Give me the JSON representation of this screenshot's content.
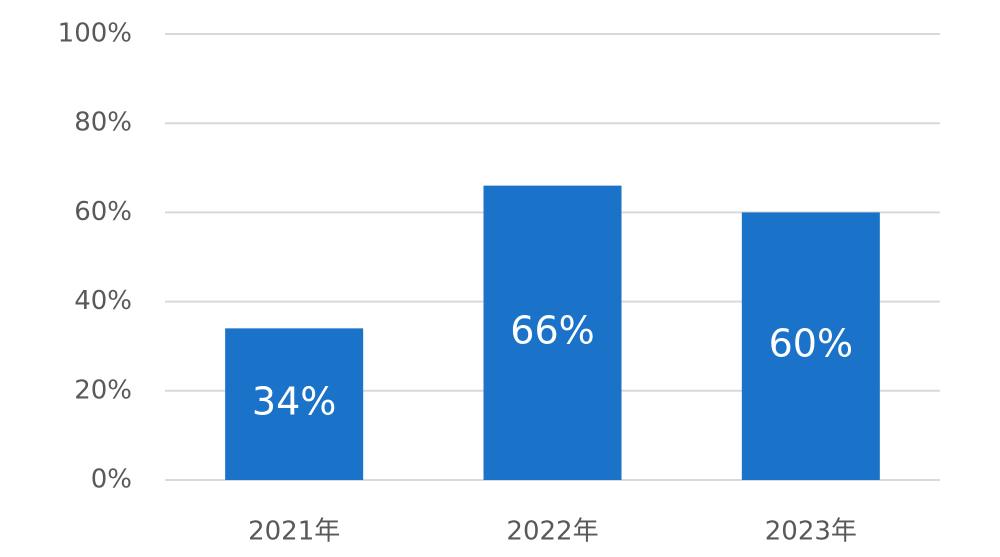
{
  "chart_data": {
    "type": "bar",
    "categories": [
      "2021年",
      "2022年",
      "2023年"
    ],
    "values": [
      34,
      66,
      60
    ],
    "value_labels": [
      "34%",
      "66%",
      "60%"
    ],
    "color": "#1a73c9",
    "ylim": [
      0,
      100
    ],
    "yticks": [
      {
        "value": 0,
        "label": "0%"
      },
      {
        "value": 20,
        "label": "20%"
      },
      {
        "value": 40,
        "label": "40%"
      },
      {
        "value": 60,
        "label": "60%"
      },
      {
        "value": 80,
        "label": "80%"
      },
      {
        "value": 100,
        "label": "100%"
      }
    ],
    "grid": true
  }
}
